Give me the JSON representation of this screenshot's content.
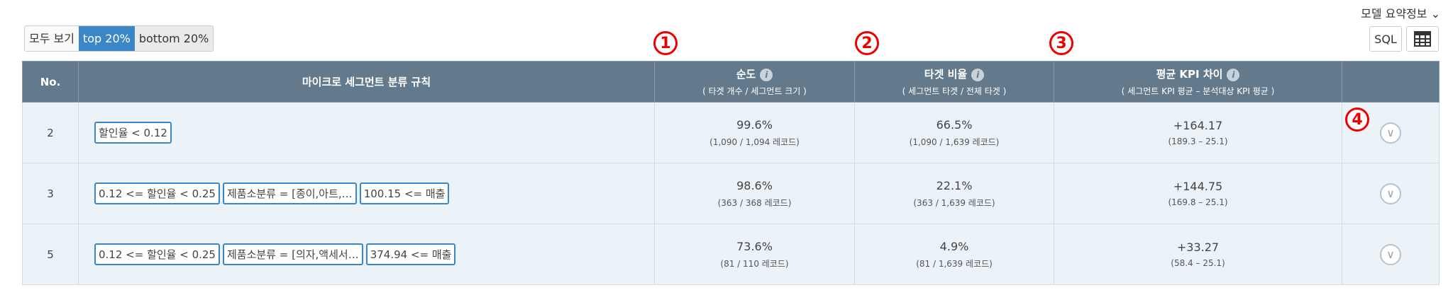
{
  "summary_label": "모델 요약정보 ⌄",
  "filters": [
    "모두 보기",
    "top 20%",
    "bottom 20%"
  ],
  "active_filter": "top 20%",
  "sql_label": "SQL",
  "markers": [
    "1",
    "2",
    "3",
    "4"
  ],
  "columns": {
    "no": "No.",
    "rule": "마이크로 세그먼트 분류 규칙",
    "purity": {
      "title": "순도",
      "sub": "( 타겟 개수 / 세그먼트 크기 )"
    },
    "ratio": {
      "title": "타겟 비율",
      "sub": "( 세그먼트 타겟 / 전체 타겟 )"
    },
    "kpi": {
      "title": "평균 KPI 차이",
      "sub": "( 세그먼트 KPI 평균 – 분석대상 KPI 평균 )"
    }
  },
  "rows": [
    {
      "no": "2",
      "rules": [
        "할인율 < 0.12"
      ],
      "purity": "99.6%",
      "purity_sub": "(1,090 / 1,094 레코드)",
      "ratio": "66.5%",
      "ratio_sub": "(1,090 / 1,639 레코드)",
      "kpi": "+164.17",
      "kpi_sub": "(189.3 – 25.1)"
    },
    {
      "no": "3",
      "rules": [
        "0.12 <= 할인율 < 0.25",
        "제품소분류 = [종이,아트,…",
        "100.15 <= 매출"
      ],
      "purity": "98.6%",
      "purity_sub": "(363 / 368 레코드)",
      "ratio": "22.1%",
      "ratio_sub": "(363 / 1,639 레코드)",
      "kpi": "+144.75",
      "kpi_sub": "(169.8 – 25.1)"
    },
    {
      "no": "5",
      "rules": [
        "0.12 <= 할인율 < 0.25",
        "제품소분류 = [의자,액세서…",
        "374.94 <= 매출"
      ],
      "purity": "73.6%",
      "purity_sub": "(81 / 110 레코드)",
      "ratio": "4.9%",
      "ratio_sub": "(81 / 1,639 레코드)",
      "kpi": "+33.27",
      "kpi_sub": "(58.4 – 25.1)"
    }
  ]
}
